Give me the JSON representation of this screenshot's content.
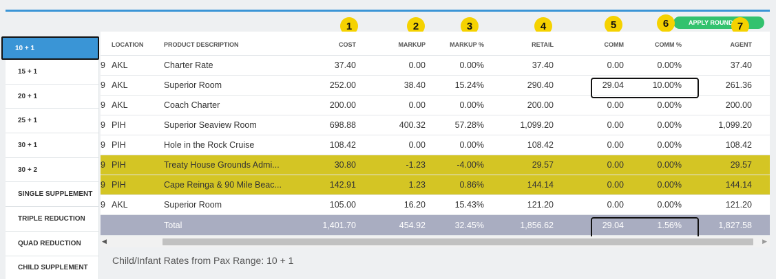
{
  "sidebar": {
    "items": [
      "10 + 1",
      "15 + 1",
      "20 + 1",
      "25 + 1",
      "30 + 1",
      "30 + 2",
      "SINGLE SUPPLEMENT",
      "TRIPLE REDUCTION",
      "QUAD REDUCTION",
      "CHILD SUPPLEMENT"
    ],
    "active_index": 0
  },
  "apply_button": {
    "label": "APPLY ROUNDING"
  },
  "callouts": [
    "1",
    "2",
    "3",
    "4",
    "5",
    "6",
    "7"
  ],
  "table": {
    "headers": {
      "location": "LOCATION",
      "description": "PRODUCT DESCRIPTION",
      "cost": "COST",
      "markup": "MARKUP",
      "markup_pct": "MARKUP %",
      "retail": "RETAIL",
      "comm": "COMM",
      "comm_pct": "COMM %",
      "agent": "AGENT"
    },
    "rows": [
      {
        "date": "9",
        "location": "AKL",
        "description": "Charter Rate",
        "cost": "37.40",
        "markup": "0.00",
        "markup_pct": "0.00%",
        "retail": "37.40",
        "comm": "0.00",
        "comm_pct": "0.00%",
        "agent": "37.40",
        "highlight": false
      },
      {
        "date": "9",
        "location": "AKL",
        "description": "Superior Room",
        "cost": "252.00",
        "markup": "38.40",
        "markup_pct": "15.24%",
        "retail": "290.40",
        "comm": "29.04",
        "comm_pct": "10.00%",
        "agent": "261.36",
        "highlight": false
      },
      {
        "date": "9",
        "location": "AKL",
        "description": "Coach Charter",
        "cost": "200.00",
        "markup": "0.00",
        "markup_pct": "0.00%",
        "retail": "200.00",
        "comm": "0.00",
        "comm_pct": "0.00%",
        "agent": "200.00",
        "highlight": false
      },
      {
        "date": "9",
        "location": "PIH",
        "description": "Superior Seaview Room",
        "cost": "698.88",
        "markup": "400.32",
        "markup_pct": "57.28%",
        "retail": "1,099.20",
        "comm": "0.00",
        "comm_pct": "0.00%",
        "agent": "1,099.20",
        "highlight": false
      },
      {
        "date": "9",
        "location": "PIH",
        "description": "Hole in the Rock Cruise",
        "cost": "108.42",
        "markup": "0.00",
        "markup_pct": "0.00%",
        "retail": "108.42",
        "comm": "0.00",
        "comm_pct": "0.00%",
        "agent": "108.42",
        "highlight": false
      },
      {
        "date": "9",
        "location": "PIH",
        "description": "Treaty House Grounds Admi...",
        "cost": "30.80",
        "markup": "-1.23",
        "markup_pct": "-4.00%",
        "retail": "29.57",
        "comm": "0.00",
        "comm_pct": "0.00%",
        "agent": "29.57",
        "highlight": true
      },
      {
        "date": "9",
        "location": "PIH",
        "description": "Cape Reinga & 90 Mile Beac...",
        "cost": "142.91",
        "markup": "1.23",
        "markup_pct": "0.86%",
        "retail": "144.14",
        "comm": "0.00",
        "comm_pct": "0.00%",
        "agent": "144.14",
        "highlight": true
      },
      {
        "date": "9",
        "location": "AKL",
        "description": "Superior Room",
        "cost": "105.00",
        "markup": "16.20",
        "markup_pct": "15.43%",
        "retail": "121.20",
        "comm": "0.00",
        "comm_pct": "0.00%",
        "agent": "121.20",
        "highlight": false
      }
    ],
    "total": {
      "label": "Total",
      "cost": "1,401.70",
      "markup": "454.92",
      "markup_pct": "32.45%",
      "retail": "1,856.62",
      "comm": "29.04",
      "comm_pct": "1.56%",
      "agent": "1,827.58"
    }
  },
  "footnote": "Child/Infant Rates from Pax Range: 10 + 1",
  "colors": {
    "accent": "#3a95d6",
    "highlight_row": "#d4c524",
    "total_row": "#a9adc1",
    "button_green": "#33c26e",
    "callout": "#f5d200"
  }
}
